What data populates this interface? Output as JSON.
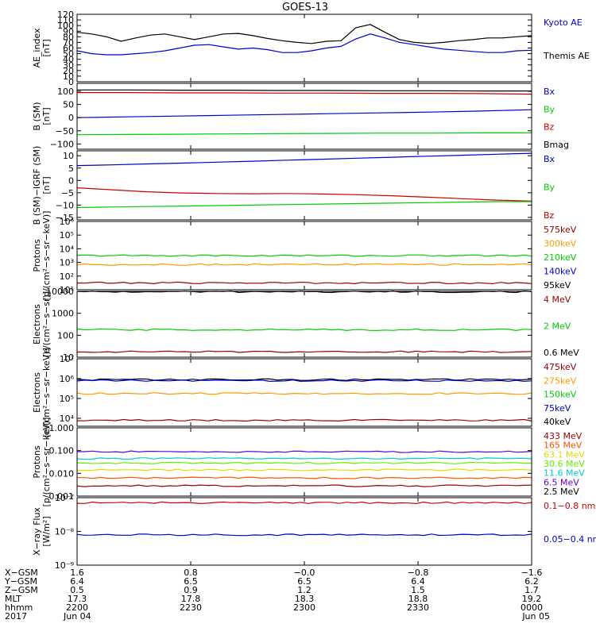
{
  "title": "GOES-13",
  "colors": {
    "black": "#000000",
    "blue": "#0000cc",
    "red": "#cc0000",
    "green": "#00cc00",
    "orange": "#ff9900",
    "cyan": "#00cccc",
    "purple": "#6600cc",
    "yellow": "#dddd00",
    "darkred": "#990000",
    "brown": "#993300",
    "orangered": "#ff5500",
    "lightgreen": "#66ee00"
  },
  "chart_data": [
    {
      "type": "line",
      "id": "ae",
      "ylabel": [
        "AE_index",
        "[nT]"
      ],
      "yscale": "linear",
      "ylim": [
        0,
        120
      ],
      "ticks": [
        0,
        10,
        20,
        30,
        40,
        50,
        60,
        70,
        80,
        90,
        100,
        110,
        120
      ],
      "ticklabels": [
        "0",
        "10",
        "20",
        "30",
        "40",
        "50",
        "60",
        "70",
        "80",
        "90",
        "100",
        "110",
        "120"
      ],
      "legend": [
        {
          "label": "Kyoto AE",
          "color": "blue"
        },
        {
          "label": "Themis AE",
          "color": "black"
        }
      ],
      "series": [
        {
          "name": "Themis AE",
          "color": "black",
          "values": [
            88,
            85,
            80,
            72,
            78,
            83,
            85,
            80,
            75,
            80,
            85,
            86,
            82,
            77,
            73,
            70,
            68,
            72,
            73,
            96,
            102,
            88,
            75,
            70,
            68,
            70,
            73,
            75,
            78,
            78,
            80,
            82
          ]
        },
        {
          "name": "Kyoto AE",
          "color": "blue",
          "values": [
            55,
            50,
            48,
            48,
            50,
            52,
            55,
            60,
            65,
            66,
            62,
            58,
            60,
            57,
            52,
            52,
            55,
            60,
            63,
            76,
            85,
            78,
            70,
            66,
            62,
            58,
            56,
            54,
            52,
            52,
            55,
            56
          ]
        }
      ]
    },
    {
      "type": "line",
      "id": "bsm",
      "ylabel": [
        "B (SM)",
        "[nT]"
      ],
      "yscale": "linear",
      "ylim": [
        -120,
        130
      ],
      "ticks": [
        -100,
        -50,
        0,
        50,
        100
      ],
      "ticklabels": [
        "−100",
        "−50",
        "0",
        "50",
        "100"
      ],
      "legend": [
        {
          "label": "Bx",
          "color": "blue"
        },
        {
          "label": "By",
          "color": "green"
        },
        {
          "label": "Bz",
          "color": "red"
        },
        {
          "label": "Bmag",
          "color": "black"
        }
      ],
      "series": [
        {
          "name": "Bmag",
          "color": "black",
          "values": [
            105,
            105,
            104,
            104,
            103,
            103,
            102,
            102,
            101,
            101
          ]
        },
        {
          "name": "Bz",
          "color": "red",
          "values": [
            95,
            95,
            94,
            94,
            93,
            93,
            92,
            92,
            91,
            89
          ]
        },
        {
          "name": "Bx",
          "color": "blue",
          "values": [
            0,
            3,
            6,
            9,
            12,
            15,
            18,
            21,
            25,
            30
          ]
        },
        {
          "name": "By",
          "color": "green",
          "values": [
            -65,
            -64,
            -63,
            -62,
            -61,
            -60,
            -59,
            -59,
            -58,
            -58
          ]
        }
      ]
    },
    {
      "type": "line",
      "id": "bigrf",
      "ylabel": [
        "B (SM)−IGRF (SM)",
        "[nT]"
      ],
      "yscale": "linear",
      "ylim": [
        -16,
        12
      ],
      "ticks": [
        -15,
        -10,
        -5,
        0,
        5,
        10
      ],
      "ticklabels": [
        "−15",
        "−10",
        "−5",
        "0",
        "5",
        "10"
      ],
      "legend": [
        {
          "label": "Bx",
          "color": "blue"
        },
        {
          "label": "By",
          "color": "green"
        },
        {
          "label": "Bz",
          "color": "red"
        }
      ],
      "series": [
        {
          "name": "Bx",
          "color": "blue",
          "values": [
            6,
            6.3,
            6.7,
            7,
            7.4,
            7.8,
            8.2,
            8.6,
            9,
            9.4,
            9.8,
            10.2,
            10.6,
            11
          ]
        },
        {
          "name": "Bz",
          "color": "red",
          "values": [
            -3,
            -3.8,
            -4.6,
            -5.1,
            -5.3,
            -5.4,
            -5.3,
            -5.5,
            -5.8,
            -6.2,
            -6.8,
            -7.4,
            -8.0,
            -8.4
          ]
        },
        {
          "name": "By",
          "color": "green",
          "values": [
            -11,
            -10.8,
            -10.6,
            -10.4,
            -10.2,
            -10,
            -9.8,
            -9.6,
            -9.4,
            -9.2,
            -9,
            -8.8,
            -8.6,
            -8.6
          ]
        }
      ]
    },
    {
      "type": "line",
      "id": "protons_low",
      "ylabel": [
        "Protons",
        "[p/(cm²−s−sr−keV)]"
      ],
      "yscale": "log",
      "ylim": [
        1,
        6
      ],
      "ticks": [
        1,
        2,
        3,
        4,
        5,
        6
      ],
      "ticklabels": [
        "10¹",
        "10²",
        "10³",
        "10⁴",
        "10⁵",
        "10⁶"
      ],
      "legend": [
        {
          "label": "575keV",
          "color": "darkred"
        },
        {
          "label": "300keV",
          "color": "orange"
        },
        {
          "label": "210keV",
          "color": "green"
        },
        {
          "label": "140keV",
          "color": "blue"
        },
        {
          "label": "95keV",
          "color": "black"
        }
      ],
      "series": [
        {
          "name": "210keV",
          "color": "green",
          "value": 3.5
        },
        {
          "name": "300keV",
          "color": "orange",
          "value": 2.85
        },
        {
          "name": "575keV",
          "color": "darkred",
          "value": 1.5
        }
      ]
    },
    {
      "type": "line",
      "id": "electrons_int",
      "ylabel": [
        "Electrons",
        "[e/(cm²−s−sr)]"
      ],
      "yscale": "log",
      "ylim": [
        1,
        4
      ],
      "ticks": [
        1,
        2,
        3,
        4
      ],
      "ticklabels": [
        "10",
        "100",
        "1000",
        "10000"
      ],
      "legend": [
        {
          "label": "4 MeV",
          "color": "darkred"
        },
        {
          "label": "2 MeV",
          "color": "green"
        },
        {
          "label": "0.6 MeV",
          "color": "black"
        }
      ],
      "series": [
        {
          "name": "0.6 MeV",
          "color": "black",
          "value": 3.98
        },
        {
          "name": "2 MeV",
          "color": "green",
          "value": 2.25
        },
        {
          "name": "4 MeV",
          "color": "darkred",
          "value": 1.25
        }
      ]
    },
    {
      "type": "line",
      "id": "electrons_diff",
      "ylabel": [
        "Electrons",
        "[e/(cm²−s−sr−keV)]"
      ],
      "yscale": "log",
      "ylim": [
        3.6,
        7
      ],
      "ticks": [
        4,
        5,
        6,
        7
      ],
      "ticklabels": [
        "10⁴",
        "10⁵",
        "10⁶",
        "10⁷"
      ],
      "legend": [
        {
          "label": "475keV",
          "color": "darkred"
        },
        {
          "label": "275keV",
          "color": "orange"
        },
        {
          "label": "150keV",
          "color": "green"
        },
        {
          "label": "75keV",
          "color": "blue"
        },
        {
          "label": "40keV",
          "color": "black"
        }
      ],
      "series": [
        {
          "name": "40keV",
          "color": "black",
          "value": 5.95
        },
        {
          "name": "75keV",
          "color": "blue",
          "value": 5.9
        },
        {
          "name": "150keV",
          "color": "orange",
          "value": 5.25
        },
        {
          "name": "475keV",
          "color": "darkred",
          "value": 3.9
        }
      ]
    },
    {
      "type": "line",
      "id": "protons_high",
      "ylabel": [
        "Protons",
        "[p/(cm²−s−sr−keV)]"
      ],
      "yscale": "log",
      "ylim": [
        -3,
        0
      ],
      "ticks": [
        -3,
        -2,
        -1,
        0
      ],
      "ticklabels": [
        "0.001",
        "0.010",
        "0.100",
        "1.000"
      ],
      "legend": [
        {
          "label": "433 MeV",
          "color": "darkred"
        },
        {
          "label": "165 MeV",
          "color": "orangered"
        },
        {
          "label": "63.1 MeV",
          "color": "yellow"
        },
        {
          "label": "30.6 MeV",
          "color": "lightgreen"
        },
        {
          "label": "11.6 MeV",
          "color": "cyan"
        },
        {
          "label": "6.5 MeV",
          "color": "purple"
        },
        {
          "label": "2.5 MeV",
          "color": "black"
        }
      ],
      "series": [
        {
          "name": "6.5 MeV",
          "color": "purple",
          "value": -1.05
        },
        {
          "name": "11.6 MeV",
          "color": "cyan",
          "value": -1.35
        },
        {
          "name": "30.6 MeV",
          "color": "lightgreen",
          "value": -1.55
        },
        {
          "name": "63.1 MeV",
          "color": "yellow",
          "value": -1.85
        },
        {
          "name": "165 MeV",
          "color": "orangered",
          "value": -2.2
        },
        {
          "name": "433 MeV",
          "color": "darkred",
          "value": -2.55
        }
      ]
    },
    {
      "type": "line",
      "id": "xray",
      "ylabel": [
        "X−ray Flux",
        "[W/m²]"
      ],
      "yscale": "log",
      "ylim": [
        -9,
        -7
      ],
      "ticks": [
        -9,
        -8,
        -7
      ],
      "ticklabels": [
        "10⁻⁹",
        "10⁻⁸",
        "10⁻⁷"
      ],
      "legend": [
        {
          "label": "0.1−0.8 nm",
          "color": "red"
        },
        {
          "label": "0.05−0.4 nm",
          "color": "blue"
        }
      ],
      "series": [
        {
          "name": "0.1−0.8 nm",
          "color": "red",
          "value": -7.15
        },
        {
          "name": "0.05−0.4 nm",
          "color": "blue",
          "value": -8.1
        }
      ]
    }
  ],
  "orbit": {
    "row_labels": [
      "X−GSM",
      "Y−GSM",
      "Z−GSM",
      "MLT",
      "hhmm",
      "2017"
    ],
    "columns": [
      [
        "1.6",
        "6.4",
        "0.5",
        "17.3",
        "2200",
        "Jun 04"
      ],
      [
        "0.8",
        "6.5",
        "0.9",
        "17.8",
        "2230",
        ""
      ],
      [
        "−0.0",
        "6.5",
        "1.2",
        "18.3",
        "2300",
        ""
      ],
      [
        "−0.8",
        "6.4",
        "1.5",
        "18.8",
        "2330",
        ""
      ],
      [
        "−1.6",
        "6.2",
        "1.7",
        "19.2",
        "0000",
        "Jun 05"
      ]
    ]
  }
}
